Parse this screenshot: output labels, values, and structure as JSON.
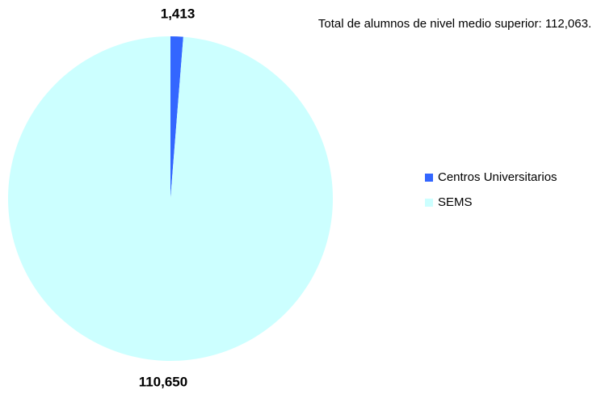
{
  "chart_data": {
    "type": "pie",
    "annotation": "Total de alumnos de nivel medio superior: 112,063.",
    "categories": [
      "Centros Universitarios",
      "SEMS"
    ],
    "values": [
      1413,
      110650
    ],
    "value_labels": [
      "1,413",
      "110,650"
    ],
    "colors": [
      "#3366ff",
      "#ccffff"
    ],
    "legend": "right"
  }
}
